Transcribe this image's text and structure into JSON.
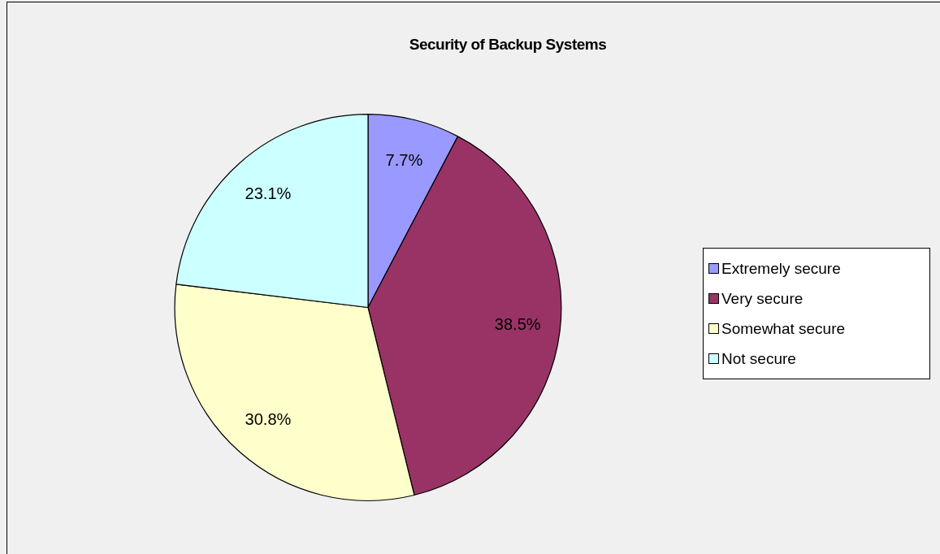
{
  "chart_data": {
    "type": "pie",
    "title": "Security of Backup Systems",
    "categories": [
      "Extremely secure",
      "Very secure",
      "Somewhat secure",
      "Not secure"
    ],
    "values": [
      7.7,
      38.5,
      30.8,
      23.1
    ],
    "colors": [
      "#9999ff",
      "#993366",
      "#ffffcc",
      "#ccffff"
    ],
    "value_labels": [
      "7.7%",
      "38.5%",
      "30.8%",
      "23.1%"
    ],
    "legend": "right"
  }
}
